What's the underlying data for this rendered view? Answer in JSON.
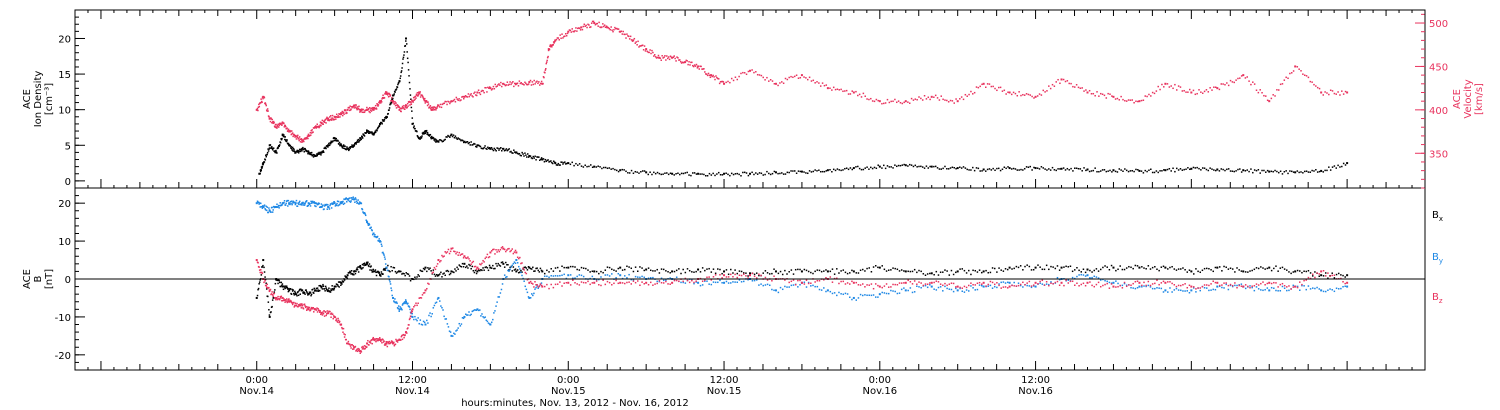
{
  "chart_data": [
    {
      "type": "scatter",
      "panel": "top",
      "ylabel_left": [
        "ACE",
        "Ion Density",
        "[cm⁻³]"
      ],
      "ylabel_right": [
        "ACE",
        "Velocity",
        "[km/s]"
      ],
      "ylim_left": [
        -1,
        24
      ],
      "ylim_right": [
        310,
        515
      ],
      "left_ticks": [
        0,
        5,
        10,
        15,
        20
      ],
      "right_ticks": [
        350,
        400,
        450,
        500
      ],
      "series": [
        {
          "name": "Ion Density",
          "color": "#000000",
          "axis": "left",
          "x": [
            0.2,
            0.5,
            1.0,
            1.5,
            2.0,
            2.5,
            3.0,
            3.5,
            4.0,
            4.5,
            5.0,
            5.5,
            6.0,
            6.5,
            7.0,
            7.5,
            8.0,
            8.5,
            9.0,
            9.5,
            10.0,
            10.5,
            11.0,
            11.5,
            12.0,
            12.5,
            13.0,
            13.5,
            14.0,
            15.0,
            16.0,
            17.0,
            18.0,
            19.0,
            20.0,
            21.0,
            22.0,
            23.0,
            24.0,
            26.0,
            28.0,
            30.0,
            32.0,
            34.0,
            36.0,
            38.0,
            40.0,
            42.0,
            44.0,
            46.0,
            48.0,
            50.0,
            52.0,
            54.0,
            56.0,
            58.0,
            60.0,
            62.0,
            64.0,
            66.0,
            68.0,
            70.0,
            72.0,
            74.0,
            76.0,
            78.0,
            80.0,
            82.0,
            84.0
          ],
          "y": [
            1,
            2.5,
            5,
            4,
            6.5,
            5,
            4,
            4.5,
            4,
            3.5,
            4,
            5,
            6,
            5,
            4.5,
            5,
            6,
            7,
            6.5,
            8,
            9,
            12,
            14,
            20,
            8,
            6,
            7,
            6,
            5.5,
            6.5,
            5.5,
            5,
            4.5,
            4.5,
            4,
            3.5,
            3,
            2.5,
            2.5,
            2,
            1.5,
            1.2,
            1,
            1,
            1,
            1,
            1.2,
            1.3,
            1.5,
            1.8,
            2,
            2.2,
            2,
            1.8,
            1.6,
            1.8,
            1.8,
            1.7,
            1.6,
            1.5,
            1.4,
            1.5,
            1.7,
            1.6,
            1.5,
            1.3,
            1.2,
            1.4,
            2.5
          ]
        },
        {
          "name": "Velocity",
          "color": "#e8335e",
          "axis": "right",
          "x": [
            0.0,
            0.5,
            1.0,
            1.5,
            2.0,
            2.5,
            3.0,
            3.5,
            4.0,
            4.5,
            5.0,
            5.5,
            6.0,
            6.5,
            7.0,
            7.5,
            8.0,
            8.5,
            9.0,
            9.5,
            10.0,
            10.5,
            11.0,
            11.5,
            12.0,
            12.5,
            13.0,
            13.5,
            14.0,
            15.0,
            16.0,
            17.0,
            18.0,
            19.0,
            20.0,
            21.0,
            22.0,
            22.5,
            23.0,
            24.0,
            25.0,
            26.0,
            27.0,
            28.0,
            29.0,
            30.0,
            31.0,
            32.0,
            33.0,
            34.0,
            35.0,
            36.0,
            38.0,
            40.0,
            42.0,
            44.0,
            46.0,
            48.0,
            50.0,
            52.0,
            54.0,
            56.0,
            58.0,
            60.0,
            62.0,
            64.0,
            66.0,
            68.0,
            70.0,
            72.0,
            74.0,
            76.0,
            78.0,
            80.0,
            82.0,
            84.0
          ],
          "y": [
            400,
            415,
            390,
            380,
            385,
            375,
            370,
            365,
            370,
            380,
            385,
            390,
            392,
            395,
            400,
            405,
            400,
            400,
            400,
            410,
            420,
            410,
            400,
            405,
            410,
            420,
            410,
            400,
            405,
            410,
            415,
            420,
            425,
            430,
            430,
            432,
            430,
            470,
            480,
            490,
            495,
            500,
            495,
            490,
            480,
            470,
            460,
            460,
            455,
            450,
            440,
            430,
            445,
            430,
            440,
            425,
            420,
            410,
            410,
            415,
            410,
            430,
            420,
            415,
            435,
            420,
            415,
            410,
            430,
            420,
            425,
            440,
            410,
            450,
            420,
            420
          ]
        }
      ]
    },
    {
      "type": "scatter",
      "panel": "bottom",
      "ylabel_left": [
        "ACE",
        "B",
        "[nT]"
      ],
      "ylim_left": [
        -24,
        24
      ],
      "left_ticks": [
        -20,
        -10,
        0,
        10,
        20
      ],
      "zero_line": true,
      "legend_placement": "right",
      "series": [
        {
          "name": "Bₓ",
          "color": "#000000",
          "x": [
            0.0,
            0.5,
            1.0,
            1.5,
            2.0,
            2.5,
            3.0,
            3.5,
            4.0,
            4.5,
            5.0,
            5.5,
            6.0,
            6.5,
            7.0,
            7.5,
            8.0,
            8.5,
            9.0,
            9.5,
            10.0,
            11.0,
            12.0,
            13.0,
            14.0,
            15.0,
            16.0,
            17.0,
            18.0,
            19.0,
            20.0,
            21.0,
            22.0,
            24.0,
            26.0,
            28.0,
            30.0,
            32.0,
            34.0,
            36.0,
            38.0,
            40.0,
            42.0,
            44.0,
            46.0,
            48.0,
            50.0,
            52.0,
            54.0,
            56.0,
            58.0,
            60.0,
            62.0,
            64.0,
            66.0,
            68.0,
            70.0,
            72.0,
            74.0,
            76.0,
            78.0,
            80.0,
            82.0,
            84.0
          ],
          "y": [
            -5,
            5,
            -10,
            0,
            -2,
            -3,
            -4,
            -3,
            -4,
            -3,
            -2,
            -3,
            -2,
            -1,
            1,
            2,
            3,
            4,
            2,
            1,
            3,
            2,
            0,
            3,
            1,
            2,
            4,
            2,
            3,
            4,
            2,
            3,
            2,
            3,
            2,
            3,
            2.5,
            2,
            2.5,
            2,
            1.5,
            2,
            2,
            2,
            2,
            3,
            2,
            1.5,
            2,
            2,
            3,
            3,
            3,
            2.5,
            3,
            3,
            3,
            2,
            3,
            2,
            3,
            2,
            1,
            1
          ]
        },
        {
          "name": "B_y",
          "color": "#1e88e5",
          "x": [
            0.0,
            0.5,
            1.0,
            1.5,
            2.0,
            2.5,
            3.0,
            3.5,
            4.0,
            4.5,
            5.0,
            5.5,
            6.0,
            6.5,
            7.0,
            7.5,
            8.0,
            8.5,
            9.0,
            9.5,
            10.0,
            10.5,
            11.0,
            11.5,
            12.0,
            13.0,
            14.0,
            15.0,
            16.0,
            17.0,
            18.0,
            19.0,
            20.0,
            21.0,
            22.0,
            24.0,
            26.0,
            28.0,
            30.0,
            32.0,
            34.0,
            36.0,
            38.0,
            40.0,
            42.0,
            44.0,
            46.0,
            48.0,
            50.0,
            52.0,
            54.0,
            56.0,
            58.0,
            60.0,
            62.0,
            64.0,
            66.0,
            68.0,
            70.0,
            72.0,
            74.0,
            76.0,
            78.0,
            80.0,
            82.0,
            84.0
          ],
          "y": [
            20,
            19,
            18,
            19,
            20,
            20,
            20,
            20,
            20,
            20,
            19,
            19,
            20,
            20,
            21,
            21,
            20,
            15,
            12,
            10,
            3,
            -5,
            -8,
            -6,
            -10,
            -12,
            -5,
            -15,
            -10,
            -8,
            -12,
            0,
            5,
            -5,
            0,
            1,
            0,
            1,
            0,
            0,
            -1,
            -1,
            0,
            -3,
            -1,
            -3,
            -5,
            -4,
            -3,
            -2,
            -3,
            -2,
            -1,
            -2,
            0,
            1,
            -1,
            -2,
            -3,
            -3,
            -2,
            -2,
            -3,
            -2,
            -3,
            -2
          ]
        },
        {
          "name": "B_z",
          "color": "#e8335e",
          "x": [
            0.0,
            0.5,
            1.0,
            1.5,
            2.0,
            2.5,
            3.0,
            3.5,
            4.0,
            4.5,
            5.0,
            5.5,
            6.0,
            6.5,
            7.0,
            7.5,
            8.0,
            8.5,
            9.0,
            9.5,
            10.0,
            10.5,
            11.0,
            11.5,
            12.0,
            13.0,
            14.0,
            15.0,
            16.0,
            17.0,
            18.0,
            19.0,
            20.0,
            21.0,
            22.0,
            24.0,
            26.0,
            28.0,
            30.0,
            32.0,
            34.0,
            36.0,
            38.0,
            40.0,
            42.0,
            44.0,
            46.0,
            48.0,
            50.0,
            52.0,
            54.0,
            56.0,
            58.0,
            60.0,
            62.0,
            64.0,
            66.0,
            68.0,
            70.0,
            72.0,
            74.0,
            76.0,
            78.0,
            80.0,
            82.0,
            84.0
          ],
          "y": [
            5,
            0,
            -3,
            -5,
            -5,
            -6,
            -7,
            -7,
            -8,
            -8,
            -9,
            -9,
            -10,
            -12,
            -17,
            -18,
            -19,
            -17,
            -16,
            -16,
            -17,
            -17,
            -16,
            -14,
            -8,
            -3,
            5,
            8,
            6,
            3,
            7,
            8,
            7,
            -1,
            -2,
            -1,
            -1,
            -1,
            -1,
            -1,
            0,
            1,
            1,
            0,
            -1,
            0,
            -1,
            -2,
            -1,
            -1,
            -2,
            -1,
            -2,
            -1,
            -1,
            -1,
            -2,
            -1,
            -1,
            -2,
            -1,
            -2,
            -1,
            -2,
            2,
            -1
          ]
        }
      ]
    }
  ],
  "x_axis": {
    "xlim_hours": [
      -14,
      90
    ],
    "ticks": [
      {
        "hour": 0,
        "time": "0:00",
        "date": "Nov.14"
      },
      {
        "hour": 12,
        "time": "12:00",
        "date": "Nov.14"
      },
      {
        "hour": 24,
        "time": "0:00",
        "date": "Nov.15"
      },
      {
        "hour": 36,
        "time": "12:00",
        "date": "Nov.15"
      },
      {
        "hour": 48,
        "time": "0:00",
        "date": "Nov.16"
      },
      {
        "hour": 60,
        "time": "12:00",
        "date": "Nov.16"
      }
    ],
    "minor_tick_step_hours": 1,
    "label": "hours:minutes, Nov. 13, 2012 - Nov. 16, 2012"
  },
  "legend": {
    "bx": {
      "main": "B",
      "sub": "x"
    },
    "by": {
      "main": "B",
      "sub": "y"
    },
    "bz": {
      "main": "B",
      "sub": "z"
    }
  },
  "colors": {
    "black": "#000000",
    "blue": "#1e88e5",
    "pink": "#e8335e"
  }
}
